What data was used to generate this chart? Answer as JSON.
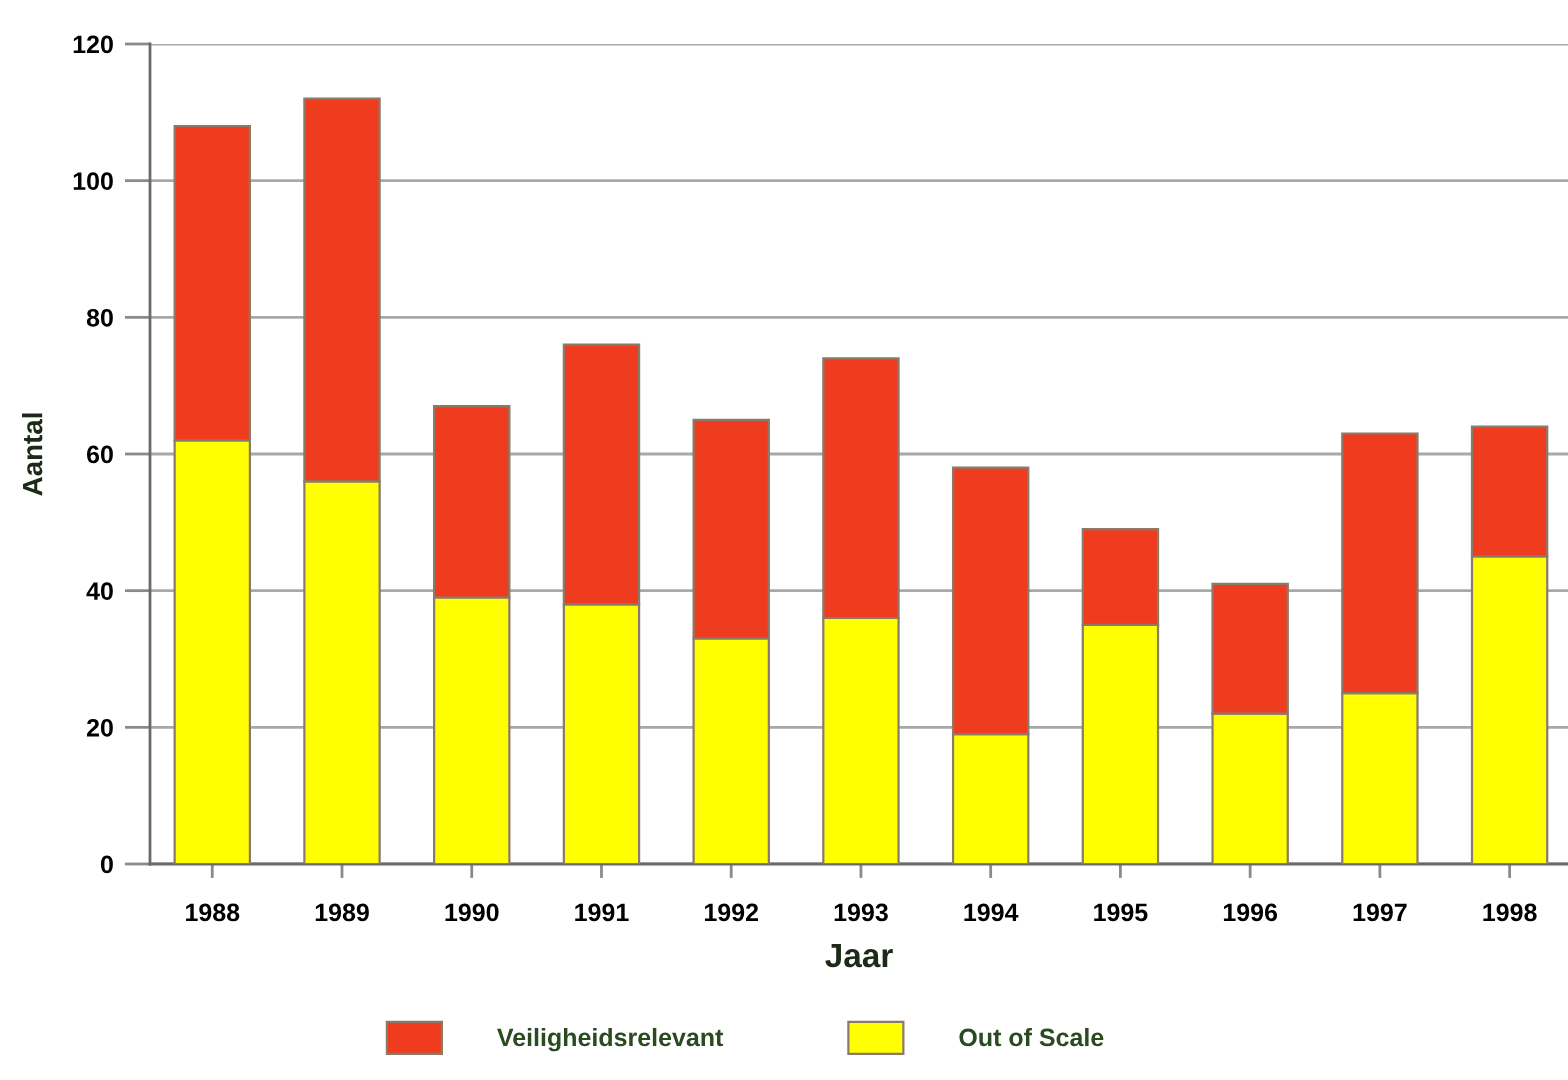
{
  "chart_data": {
    "type": "bar",
    "stacked": true,
    "categories": [
      "1988",
      "1989",
      "1990",
      "1991",
      "1992",
      "1993",
      "1994",
      "1995",
      "1996",
      "1997",
      "1998"
    ],
    "series": [
      {
        "name": "Out of Scale",
        "color": "#ffff00",
        "values": [
          62,
          56,
          39,
          38,
          33,
          36,
          19,
          35,
          22,
          25,
          45
        ]
      },
      {
        "name": "Veiligheidsrelevant",
        "color": "#f03c1e",
        "values": [
          46,
          56,
          28,
          38,
          32,
          38,
          39,
          14,
          19,
          38,
          19
        ]
      }
    ],
    "xlabel": "Jaar",
    "ylabel": "Aantal",
    "ylim": [
      0,
      120
    ],
    "yticks": [
      0,
      20,
      40,
      60,
      80,
      100,
      120
    ],
    "grid": "y",
    "legend": "bottom"
  }
}
